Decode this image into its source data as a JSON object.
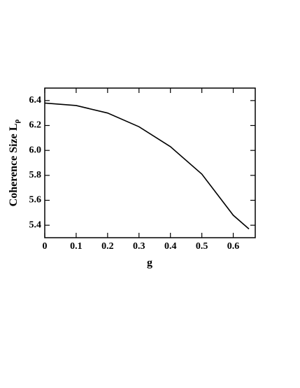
{
  "chart_data": {
    "type": "line",
    "x_label": "g",
    "y_label": "Coherence Size L",
    "y_label_subscript": "ρ",
    "x": [
      0,
      0.1,
      0.2,
      0.3,
      0.4,
      0.5,
      0.6,
      0.65
    ],
    "series": [
      {
        "color": "#000000",
        "values": [
          6.38,
          6.36,
          6.3,
          6.19,
          6.03,
          5.81,
          5.48,
          5.37
        ]
      }
    ],
    "xlim": [
      0,
      0.67
    ],
    "xticks": [
      0,
      0.1,
      0.2,
      0.3,
      0.4,
      0.5,
      0.6
    ],
    "ylim": [
      5.3,
      6.5
    ],
    "yticks": [
      5.4,
      5.6,
      5.8,
      {
        "value": 6.0,
        "label": "6.0"
      },
      6.2,
      6.4
    ]
  }
}
